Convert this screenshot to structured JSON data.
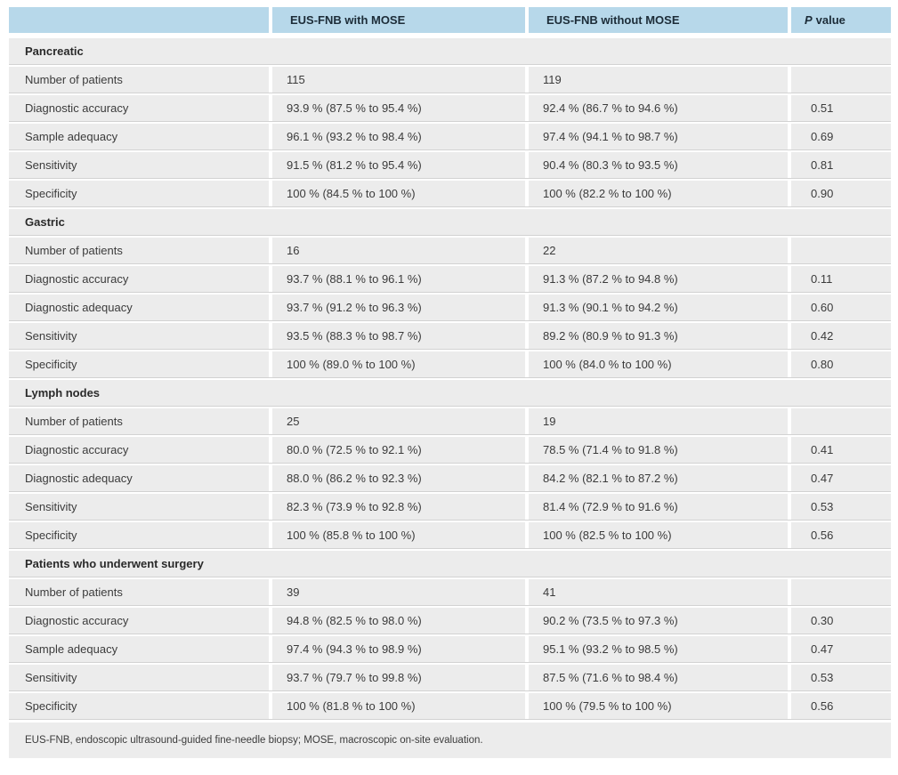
{
  "colors": {
    "header_bg": "#b7d8ea",
    "header_text": "#1c2c38",
    "row_bg": "#ececec",
    "body_text": "#3b3b3b",
    "divider_line": "#d2d2d2"
  },
  "table": {
    "header": {
      "col1": "",
      "col2": "EUS-FNB with MOSE",
      "col3": "EUS-FNB without MOSE",
      "p_label_italic": "P",
      "p_label_rest": "value"
    },
    "sections": [
      {
        "title": "Pancreatic",
        "rows": [
          {
            "label": "Number of patients",
            "with_mose": "115",
            "without_mose": "119",
            "p": ""
          },
          {
            "label": "Diagnostic accuracy",
            "with_mose": "93.9 % (87.5 % to 95.4 %)",
            "without_mose": "92.4 % (86.7 % to 94.6 %)",
            "p": "0.51"
          },
          {
            "label": "Sample adequacy",
            "with_mose": "96.1 % (93.2 % to 98.4 %)",
            "without_mose": "97.4 % (94.1 % to 98.7 %)",
            "p": "0.69"
          },
          {
            "label": "Sensitivity",
            "with_mose": "91.5 % (81.2 % to 95.4 %)",
            "without_mose": "90.4 % (80.3 % to 93.5 %)",
            "p": "0.81"
          },
          {
            "label": "Specificity",
            "with_mose": "100 % (84.5 % to 100 %)",
            "without_mose": "100 % (82.2 % to 100 %)",
            "p": "0.90"
          }
        ]
      },
      {
        "title": "Gastric",
        "rows": [
          {
            "label": "Number of patients",
            "with_mose": "16",
            "without_mose": "22",
            "p": ""
          },
          {
            "label": "Diagnostic accuracy",
            "with_mose": "93.7 % (88.1 % to 96.1 %)",
            "without_mose": "91.3 % (87.2 % to 94.8 %)",
            "p": "0.11"
          },
          {
            "label": "Diagnostic adequacy",
            "with_mose": "93.7 % (91.2 % to 96.3 %)",
            "without_mose": "91.3 % (90.1 % to 94.2 %)",
            "p": "0.60"
          },
          {
            "label": "Sensitivity",
            "with_mose": "93.5 % (88.3 % to 98.7 %)",
            "without_mose": "89.2 % (80.9 % to 91.3 %)",
            "p": "0.42"
          },
          {
            "label": "Specificity",
            "with_mose": "100 % (89.0 % to 100 %)",
            "without_mose": "100 % (84.0 % to 100 %)",
            "p": "0.80"
          }
        ]
      },
      {
        "title": "Lymph nodes",
        "rows": [
          {
            "label": "Number of patients",
            "with_mose": "25",
            "without_mose": "19",
            "p": ""
          },
          {
            "label": "Diagnostic accuracy",
            "with_mose": "80.0 % (72.5 % to 92.1 %)",
            "without_mose": "78.5 % (71.4 % to 91.8 %)",
            "p": "0.41"
          },
          {
            "label": "Diagnostic adequacy",
            "with_mose": "88.0 % (86.2 % to 92.3 %)",
            "without_mose": "84.2 % (82.1 % to 87.2 %)",
            "p": "0.47"
          },
          {
            "label": "Sensitivity",
            "with_mose": "82.3 % (73.9 % to 92.8 %)",
            "without_mose": "81.4 % (72.9 % to 91.6 %)",
            "p": "0.53"
          },
          {
            "label": "Specificity",
            "with_mose": "100 % (85.8 % to 100 %)",
            "without_mose": "100 % (82.5 % to 100 %)",
            "p": "0.56"
          }
        ]
      },
      {
        "title": "Patients who underwent surgery",
        "rows": [
          {
            "label": "Number of patients",
            "with_mose": "39",
            "without_mose": "41",
            "p": ""
          },
          {
            "label": "Diagnostic accuracy",
            "with_mose": "94.8 % (82.5 % to 98.0 %)",
            "without_mose": "90.2 % (73.5 % to 97.3 %)",
            "p": "0.30"
          },
          {
            "label": "Sample adequacy",
            "with_mose": "97.4 % (94.3 % to 98.9 %)",
            "without_mose": "95.1 % (93.2 % to 98.5 %)",
            "p": "0.47"
          },
          {
            "label": "Sensitivity",
            "with_mose": "93.7 % (79.7 % to 99.8 %)",
            "without_mose": "87.5 % (71.6 % to 98.4 %)",
            "p": "0.53"
          },
          {
            "label": "Specificity",
            "with_mose": "100 % (81.8 % to 100 %)",
            "without_mose": "100 % (79.5 % to 100 %)",
            "p": "0.56"
          }
        ]
      }
    ],
    "footnote": "EUS-FNB, endoscopic ultrasound-guided fine-needle biopsy; MOSE, macroscopic on-site evaluation."
  }
}
